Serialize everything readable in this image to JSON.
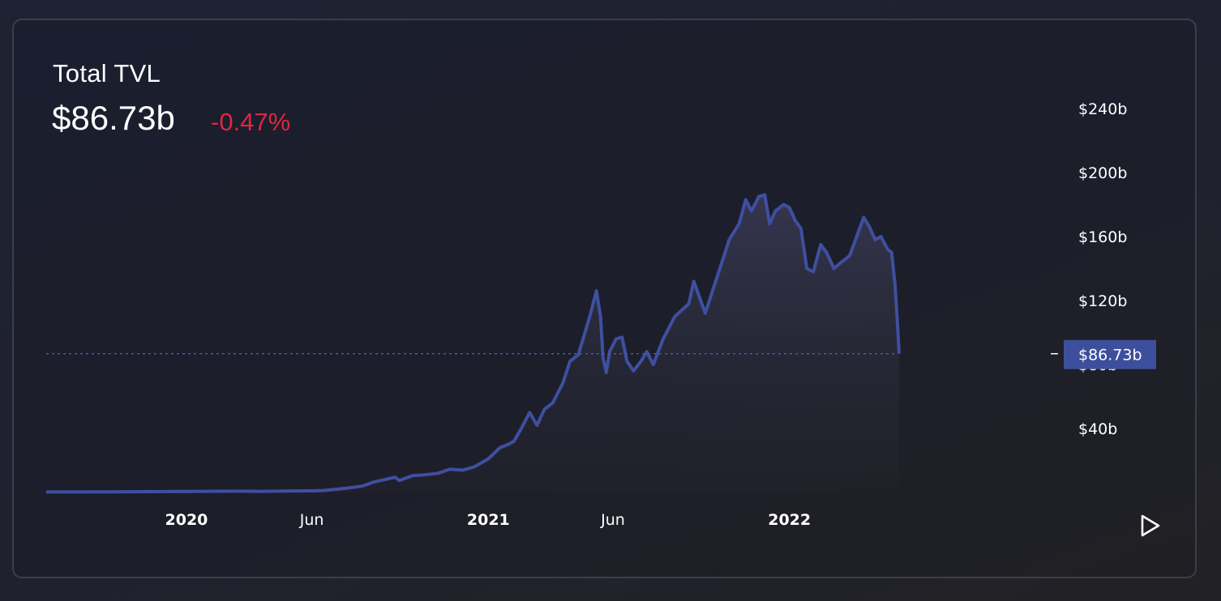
{
  "header": {
    "title": "Total TVL",
    "value": "$86.73b",
    "change": "-0.47%"
  },
  "colors": {
    "line": "#3f4fa0",
    "change_negative": "#e0263f",
    "label_bg": "#3d4f9c"
  },
  "controls": {
    "play_icon": "play-icon"
  },
  "chart_data": {
    "type": "area",
    "title": "Total TVL",
    "xlabel": "",
    "ylabel": "",
    "y_tick_labels": [
      "$40b",
      "$80b",
      "$120b",
      "$160b",
      "$200b",
      "$240b"
    ],
    "y_tick_values": [
      40,
      80,
      120,
      160,
      200,
      240
    ],
    "x_tick_labels": [
      "2020",
      "Jun",
      "2021",
      "Jun",
      "2022"
    ],
    "x_tick_dates": [
      "2020-01-01",
      "2020-06-01",
      "2021-01-01",
      "2021-06-01",
      "2022-01-01"
    ],
    "x_range": [
      "2019-07-15",
      "2022-05-25"
    ],
    "ylim": [
      0,
      258
    ],
    "current_value": 86.73,
    "current_label": "$86.73b",
    "grid": false,
    "series": [
      {
        "unit": "billions USD",
        "points": [
          [
            "2019-07-15",
            0.3
          ],
          [
            "2019-10-01",
            0.4
          ],
          [
            "2020-01-01",
            0.6
          ],
          [
            "2020-03-01",
            0.8
          ],
          [
            "2020-04-01",
            0.7
          ],
          [
            "2020-05-01",
            0.9
          ],
          [
            "2020-06-01",
            1.0
          ],
          [
            "2020-06-15",
            1.2
          ],
          [
            "2020-07-01",
            2.0
          ],
          [
            "2020-07-15",
            2.8
          ],
          [
            "2020-08-01",
            4.0
          ],
          [
            "2020-08-15",
            6.5
          ],
          [
            "2020-09-01",
            8.5
          ],
          [
            "2020-09-10",
            9.5
          ],
          [
            "2020-09-15",
            7.5
          ],
          [
            "2020-10-01",
            10.5
          ],
          [
            "2020-10-15",
            11.0
          ],
          [
            "2020-11-01",
            12.0
          ],
          [
            "2020-11-15",
            14.5
          ],
          [
            "2020-12-01",
            14.0
          ],
          [
            "2020-12-15",
            16.0
          ],
          [
            "2021-01-01",
            21.0
          ],
          [
            "2021-01-15",
            28.0
          ],
          [
            "2021-01-25",
            30.0
          ],
          [
            "2021-02-01",
            32.0
          ],
          [
            "2021-02-10",
            40.0
          ],
          [
            "2021-02-20",
            50.0
          ],
          [
            "2021-03-01",
            42.0
          ],
          [
            "2021-03-10",
            52.0
          ],
          [
            "2021-03-20",
            56.0
          ],
          [
            "2021-04-01",
            68.0
          ],
          [
            "2021-04-10",
            82.0
          ],
          [
            "2021-04-20",
            86.0
          ],
          [
            "2021-04-27",
            98.0
          ],
          [
            "2021-05-05",
            112.0
          ],
          [
            "2021-05-12",
            126.0
          ],
          [
            "2021-05-17",
            110.0
          ],
          [
            "2021-05-20",
            84.0
          ],
          [
            "2021-05-24",
            75.0
          ],
          [
            "2021-05-28",
            88.0
          ],
          [
            "2021-06-05",
            96.0
          ],
          [
            "2021-06-12",
            97.0
          ],
          [
            "2021-06-18",
            82.0
          ],
          [
            "2021-06-26",
            76.0
          ],
          [
            "2021-07-05",
            82.0
          ],
          [
            "2021-07-12",
            88.0
          ],
          [
            "2021-07-20",
            80.0
          ],
          [
            "2021-08-01",
            96.0
          ],
          [
            "2021-08-15",
            110.0
          ],
          [
            "2021-09-01",
            118.0
          ],
          [
            "2021-09-07",
            132.0
          ],
          [
            "2021-09-14",
            122.0
          ],
          [
            "2021-09-21",
            112.0
          ],
          [
            "2021-10-01",
            128.0
          ],
          [
            "2021-10-10",
            142.0
          ],
          [
            "2021-10-20",
            158.0
          ],
          [
            "2021-11-01",
            168.0
          ],
          [
            "2021-11-09",
            183.0
          ],
          [
            "2021-11-16",
            176.0
          ],
          [
            "2021-11-25",
            185.0
          ],
          [
            "2021-12-02",
            186.0
          ],
          [
            "2021-12-08",
            168.0
          ],
          [
            "2021-12-15",
            176.0
          ],
          [
            "2021-12-25",
            180.0
          ],
          [
            "2022-01-01",
            178.0
          ],
          [
            "2022-01-08",
            170.0
          ],
          [
            "2022-01-15",
            165.0
          ],
          [
            "2022-01-22",
            140.0
          ],
          [
            "2022-01-30",
            138.0
          ],
          [
            "2022-02-08",
            155.0
          ],
          [
            "2022-02-15",
            150.0
          ],
          [
            "2022-02-24",
            140.0
          ],
          [
            "2022-03-05",
            144.0
          ],
          [
            "2022-03-15",
            148.0
          ],
          [
            "2022-03-25",
            162.0
          ],
          [
            "2022-04-01",
            172.0
          ],
          [
            "2022-04-08",
            166.0
          ],
          [
            "2022-04-15",
            158.0
          ],
          [
            "2022-04-22",
            160.0
          ],
          [
            "2022-04-30",
            152.0
          ],
          [
            "2022-05-05",
            150.0
          ],
          [
            "2022-05-09",
            130.0
          ],
          [
            "2022-05-12",
            105.0
          ],
          [
            "2022-05-14",
            86.73
          ]
        ]
      }
    ]
  }
}
